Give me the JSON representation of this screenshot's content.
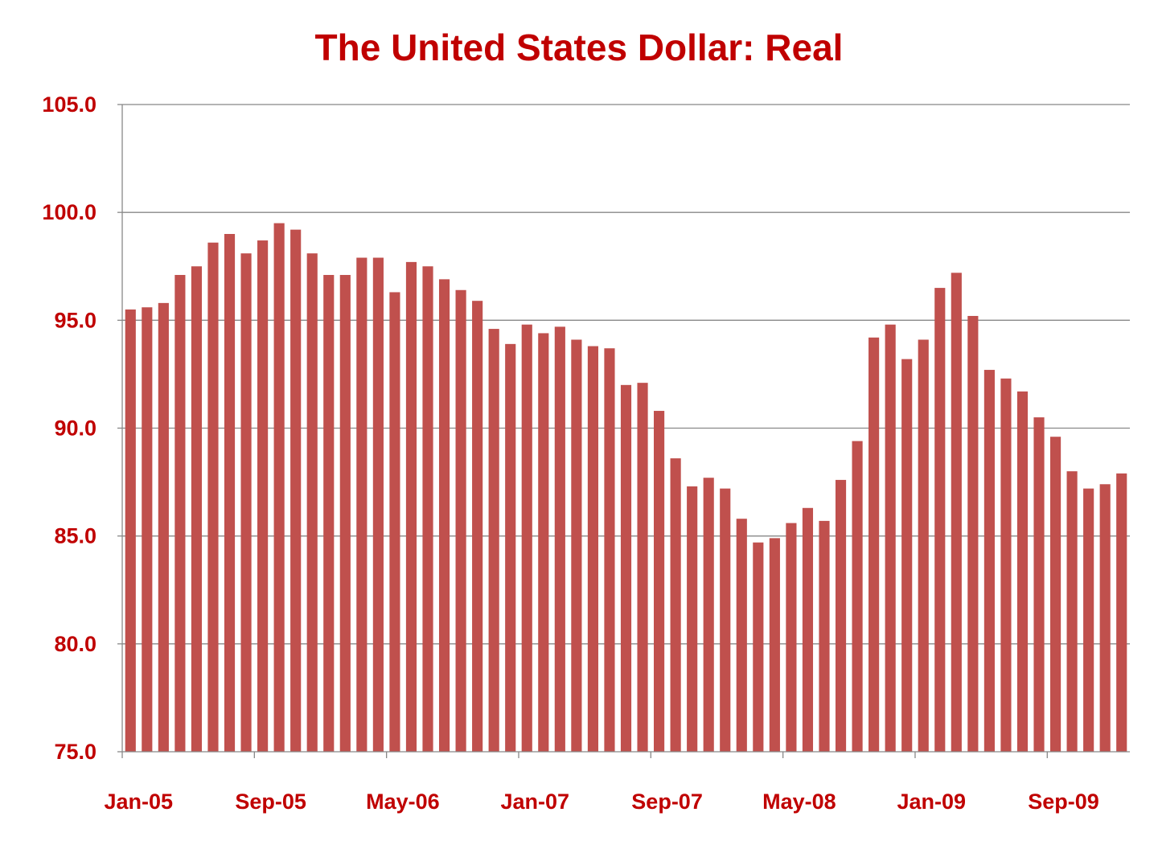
{
  "chart_data": {
    "type": "bar",
    "title": "The United States Dollar: Real",
    "xlabel": "",
    "ylabel": "",
    "ylim": [
      75,
      105
    ],
    "yticks": [
      "75.0",
      "80.0",
      "85.0",
      "90.0",
      "95.0",
      "100.0",
      "105.0"
    ],
    "xtick_labels": [
      "Jan-05",
      "Sep-05",
      "May-06",
      "Jan-07",
      "Sep-07",
      "May-08",
      "Jan-09",
      "Sep-09"
    ],
    "categories": [
      "Jan-05",
      "Feb-05",
      "Mar-05",
      "Apr-05",
      "May-05",
      "Jun-05",
      "Jul-05",
      "Aug-05",
      "Sep-05",
      "Oct-05",
      "Nov-05",
      "Dec-05",
      "Jan-06",
      "Feb-06",
      "Mar-06",
      "Apr-06",
      "May-06",
      "Jun-06",
      "Jul-06",
      "Aug-06",
      "Sep-06",
      "Oct-06",
      "Nov-06",
      "Dec-06",
      "Jan-07",
      "Feb-07",
      "Mar-07",
      "Apr-07",
      "May-07",
      "Jun-07",
      "Jul-07",
      "Aug-07",
      "Sep-07",
      "Oct-07",
      "Nov-07",
      "Dec-07",
      "Jan-08",
      "Feb-08",
      "Mar-08",
      "Apr-08",
      "May-08",
      "Jun-08",
      "Jul-08",
      "Aug-08",
      "Sep-08",
      "Oct-08",
      "Nov-08",
      "Dec-08",
      "Jan-09",
      "Feb-09",
      "Mar-09",
      "Apr-09",
      "May-09",
      "Jun-09",
      "Jul-09",
      "Aug-09",
      "Sep-09",
      "Oct-09",
      "Nov-09",
      "Dec-09",
      "Jan-10"
    ],
    "values": [
      95.5,
      95.6,
      95.8,
      97.1,
      97.5,
      98.6,
      99.0,
      98.1,
      98.7,
      99.5,
      99.2,
      98.1,
      97.1,
      97.1,
      97.9,
      97.9,
      96.3,
      97.7,
      97.5,
      96.9,
      96.4,
      95.9,
      94.6,
      93.9,
      94.8,
      94.4,
      94.7,
      94.1,
      93.8,
      93.7,
      92.0,
      92.1,
      90.8,
      88.6,
      87.3,
      87.7,
      87.2,
      85.8,
      84.7,
      84.9,
      85.6,
      86.3,
      85.7,
      87.6,
      89.4,
      94.2,
      94.8,
      93.2,
      94.1,
      96.5,
      97.2,
      95.2,
      92.7,
      92.3,
      91.7,
      90.5,
      89.6,
      88.0,
      87.2,
      87.4,
      87.9
    ],
    "grid": true,
    "bar_color": "#C0504D",
    "text_color": "#C00000"
  }
}
